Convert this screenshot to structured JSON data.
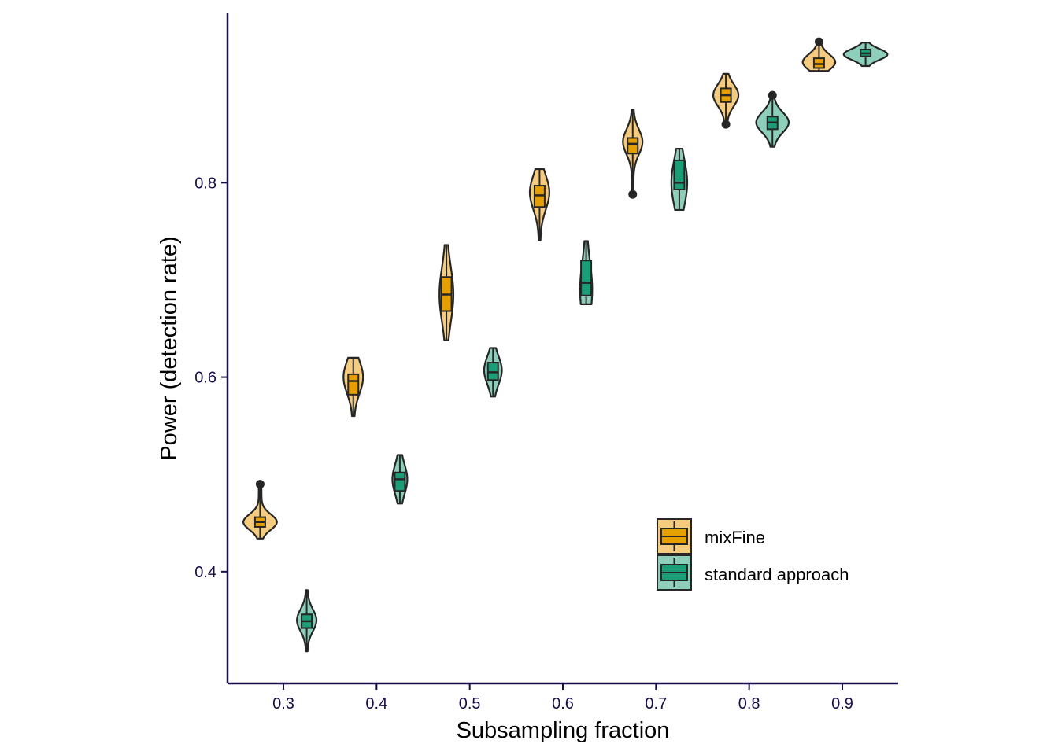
{
  "chart_data": {
    "type": "violin",
    "xlabel": "Subsampling fraction",
    "ylabel": "Power (detection rate)",
    "x_ticks": [
      0.3,
      0.4,
      0.5,
      0.6,
      0.7,
      0.8,
      0.9
    ],
    "y_ticks": [
      0.4,
      0.6,
      0.8
    ],
    "xlim": [
      0.24,
      0.96
    ],
    "ylim": [
      0.285,
      0.975
    ],
    "legend": {
      "position": "bottom-right",
      "entries": [
        {
          "name": "mixFine",
          "color": "#E69F00"
        },
        {
          "name": "standard approach",
          "color": "#1B9E77"
        }
      ]
    },
    "series": [
      {
        "name": "mixFine",
        "fill": "#F5CC7F",
        "box_fill": "#E69F00",
        "groups": [
          {
            "x": 0.275,
            "min": 0.434,
            "q1": 0.446,
            "median": 0.451,
            "q3": 0.456,
            "max": 0.49,
            "outliers": [
              0.49
            ],
            "mode": 0.451,
            "width": 0.018
          },
          {
            "x": 0.375,
            "min": 0.56,
            "q1": 0.582,
            "median": 0.596,
            "q3": 0.603,
            "max": 0.62,
            "outliers": [],
            "mode": 0.6,
            "width": 0.0105
          },
          {
            "x": 0.475,
            "min": 0.638,
            "q1": 0.668,
            "median": 0.685,
            "q3": 0.703,
            "max": 0.736,
            "outliers": [],
            "mode": 0.685,
            "width": 0.0075
          },
          {
            "x": 0.575,
            "min": 0.741,
            "q1": 0.775,
            "median": 0.787,
            "q3": 0.797,
            "max": 0.814,
            "outliers": [],
            "mode": 0.79,
            "width": 0.0105
          },
          {
            "x": 0.675,
            "min": 0.788,
            "q1": 0.83,
            "median": 0.84,
            "q3": 0.846,
            "max": 0.875,
            "outliers": [
              0.788
            ],
            "mode": 0.842,
            "width": 0.0105
          },
          {
            "x": 0.775,
            "min": 0.86,
            "q1": 0.883,
            "median": 0.89,
            "q3": 0.897,
            "max": 0.912,
            "outliers": [
              0.86
            ],
            "mode": 0.89,
            "width": 0.0135
          },
          {
            "x": 0.875,
            "min": 0.915,
            "q1": 0.918,
            "median": 0.922,
            "q3": 0.928,
            "max": 0.945,
            "outliers": [
              0.945
            ],
            "mode": 0.924,
            "width": 0.0175
          }
        ]
      },
      {
        "name": "standard approach",
        "fill": "#8DCFBB",
        "box_fill": "#1B9E77",
        "groups": [
          {
            "x": 0.325,
            "min": 0.318,
            "q1": 0.342,
            "median": 0.349,
            "q3": 0.356,
            "max": 0.381,
            "outliers": [],
            "mode": 0.35,
            "width": 0.0105
          },
          {
            "x": 0.425,
            "min": 0.47,
            "q1": 0.483,
            "median": 0.495,
            "q3": 0.502,
            "max": 0.52,
            "outliers": [],
            "mode": 0.495,
            "width": 0.008
          },
          {
            "x": 0.525,
            "min": 0.58,
            "q1": 0.597,
            "median": 0.605,
            "q3": 0.615,
            "max": 0.63,
            "outliers": [],
            "mode": 0.607,
            "width": 0.0095
          },
          {
            "x": 0.625,
            "min": 0.675,
            "q1": 0.684,
            "median": 0.697,
            "q3": 0.72,
            "max": 0.74,
            "outliers": [],
            "mode": 0.69,
            "width": 0.0065
          },
          {
            "x": 0.725,
            "min": 0.772,
            "q1": 0.793,
            "median": 0.8,
            "q3": 0.823,
            "max": 0.835,
            "outliers": [],
            "mode": 0.8,
            "width": 0.0085
          },
          {
            "x": 0.825,
            "min": 0.837,
            "q1": 0.855,
            "median": 0.862,
            "q3": 0.868,
            "max": 0.89,
            "outliers": [
              0.89
            ],
            "mode": 0.862,
            "width": 0.0175
          },
          {
            "x": 0.925,
            "min": 0.92,
            "q1": 0.93,
            "median": 0.933,
            "q3": 0.937,
            "max": 0.944,
            "outliers": [],
            "mode": 0.932,
            "width": 0.0235
          }
        ]
      }
    ]
  }
}
